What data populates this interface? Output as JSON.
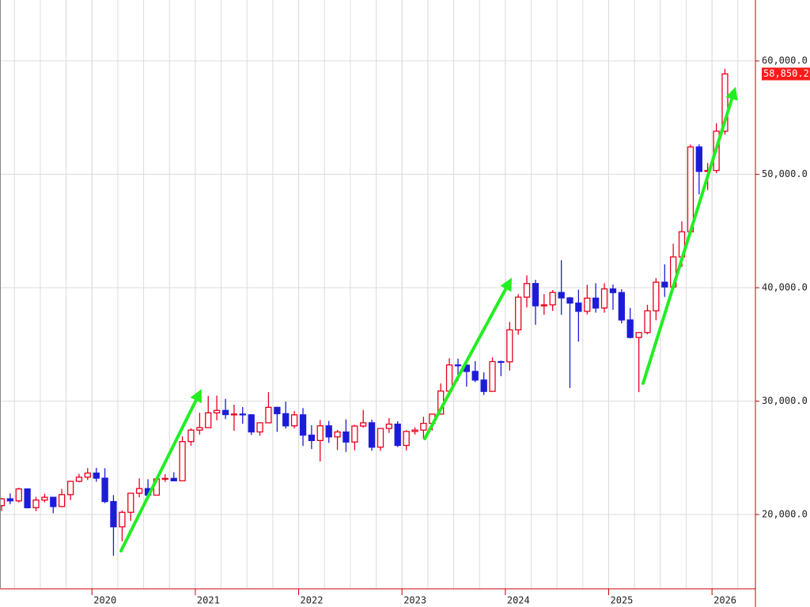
{
  "chart_data": {
    "type": "candlestick",
    "x": [
      2019.125,
      2019.208,
      2019.292,
      2019.375,
      2019.458,
      2019.542,
      2019.625,
      2019.708,
      2019.792,
      2019.875,
      2019.958,
      2020.042,
      2020.125,
      2020.208,
      2020.292,
      2020.375,
      2020.458,
      2020.542,
      2020.625,
      2020.708,
      2020.792,
      2020.875,
      2020.958,
      2021.042,
      2021.125,
      2021.208,
      2021.292,
      2021.375,
      2021.458,
      2021.542,
      2021.625,
      2021.708,
      2021.792,
      2021.875,
      2021.958,
      2022.042,
      2022.125,
      2022.208,
      2022.292,
      2022.375,
      2022.458,
      2022.542,
      2022.625,
      2022.708,
      2022.792,
      2022.875,
      2022.958,
      2023.042,
      2023.125,
      2023.208,
      2023.292,
      2023.375,
      2023.458,
      2023.542,
      2023.625,
      2023.708,
      2023.792,
      2023.875,
      2023.958,
      2024.042,
      2024.125,
      2024.208,
      2024.292,
      2024.375,
      2024.458,
      2024.542,
      2024.625,
      2024.708,
      2024.792,
      2024.875,
      2024.958,
      2025.042,
      2025.125,
      2025.208,
      2025.292,
      2025.375,
      2025.458,
      2025.542,
      2025.625,
      2025.708,
      2025.792,
      2025.875,
      2025.958,
      2026.042,
      2026.125
    ],
    "open": [
      20788,
      21385,
      21206,
      22259,
      20601,
      21276,
      21522,
      20704,
      21756,
      22927,
      23294,
      23657,
      23205,
      21143,
      18917,
      20194,
      21878,
      22288,
      21710,
      23140,
      23185,
      22977,
      26434,
      27444,
      27663,
      28966,
      29179,
      28813,
      28860,
      28792,
      27284,
      28090,
      29453,
      28893,
      27822,
      28792,
      27002,
      26527,
      27821,
      26848,
      27280,
      26393,
      27802,
      28092,
      25937,
      27587,
      27969,
      26095,
      27327,
      27446,
      28041,
      28856,
      30888,
      33189,
      33172,
      32619,
      31858,
      30859,
      33487,
      33464,
      36287,
      39166,
      40369,
      38405,
      38488,
      39583,
      39101,
      38648,
      37919,
      39081,
      38208,
      39894,
      39572,
      37155,
      35617,
      36045,
      37965,
      40487,
      40071,
      42718,
      44932,
      52411,
      50254,
      50339,
      53800
    ],
    "high": [
      21464,
      21860,
      22362,
      22307,
      21560,
      21823,
      21540,
      22255,
      22974,
      23592,
      24091,
      24115,
      24083,
      21719,
      20365,
      21916,
      23185,
      23111,
      23338,
      23560,
      23725,
      26890,
      27602,
      28979,
      30467,
      30485,
      30208,
      29685,
      29480,
      28852,
      28097,
      30795,
      29489,
      29960,
      29121,
      29388,
      27880,
      28338,
      28250,
      27458,
      28389,
      27914,
      29222,
      28353,
      27587,
      28502,
      28226,
      27433,
      27697,
      28623,
      28879,
      31560,
      33772,
      33753,
      33488,
      33533,
      32533,
      33853,
      33568,
      36984,
      39426,
      41087,
      40697,
      39437,
      39788,
      42427,
      39188,
      39829,
      40257,
      40398,
      40398,
      40288,
      39865,
      38220,
      36087,
      38494,
      40845,
      42065,
      43876,
      45852,
      52636,
      52636,
      51000,
      54500,
      59300
    ],
    "low": [
      20315,
      20911,
      21070,
      20550,
      20289,
      21060,
      20110,
      20650,
      21276,
      22850,
      23044,
      22892,
      21000,
      16358,
      17646,
      19448,
      21530,
      21650,
      21710,
      22878,
      22948,
      22948,
      26057,
      27055,
      27629,
      28308,
      28419,
      27385,
      28010,
      27013,
      26954,
      28076,
      27293,
      27588,
      27594,
      26044,
      25775,
      24681,
      26319,
      25688,
      25520,
      25662,
      27651,
      25621,
      25621,
      27199,
      25953,
      25661,
      27045,
      26632,
      27427,
      28856,
      30888,
      31791,
      31275,
      31674,
      30538,
      30859,
      32205,
      32693,
      35854,
      38271,
      36733,
      37617,
      37950,
      37611,
      31156,
      35247,
      37651,
      37801,
      37800,
      38055,
      36857,
      35526,
      30792,
      35892,
      37130,
      39190,
      39850,
      41835,
      44770,
      48235,
      48600,
      50100,
      53500
    ],
    "close": [
      21385,
      21206,
      22259,
      20601,
      21276,
      21522,
      20704,
      21756,
      22927,
      23294,
      23657,
      23205,
      21143,
      18917,
      20194,
      21878,
      22288,
      21710,
      23140,
      23185,
      22977,
      26434,
      27444,
      27663,
      28966,
      29179,
      28813,
      28860,
      28792,
      27284,
      28090,
      29453,
      28893,
      27822,
      28792,
      27002,
      26527,
      27821,
      26848,
      27280,
      26393,
      27802,
      28092,
      25937,
      27587,
      27969,
      26095,
      27327,
      27446,
      28041,
      28856,
      30888,
      33189,
      33172,
      32619,
      31858,
      30859,
      33487,
      33464,
      36287,
      39166,
      40369,
      38405,
      38488,
      39583,
      39101,
      38648,
      37919,
      39081,
      38208,
      39894,
      39572,
      37155,
      35617,
      36045,
      37965,
      40487,
      40071,
      42718,
      44932,
      52411,
      50254,
      50339,
      53800,
      58850.2
    ],
    "up_color": "#e8001c",
    "down_color": "#1c1cd8",
    "xlim": [
      2019.11,
      2026.42
    ],
    "xticks": [
      2020,
      2021,
      2022,
      2023,
      2024,
      2025,
      2026
    ],
    "ylim": [
      13450,
      65370
    ],
    "yticks": [
      {
        "value": 20000,
        "label": "20,000.0"
      },
      {
        "value": 30000,
        "label": "30,000.0"
      },
      {
        "value": 40000,
        "label": "40,000.0"
      },
      {
        "value": 50000,
        "label": "50,000.0"
      },
      {
        "value": 60000,
        "label": "60,000.0"
      }
    ],
    "last_price": {
      "value": 58850.2,
      "label": "58,850.2"
    },
    "grid": true
  }
}
